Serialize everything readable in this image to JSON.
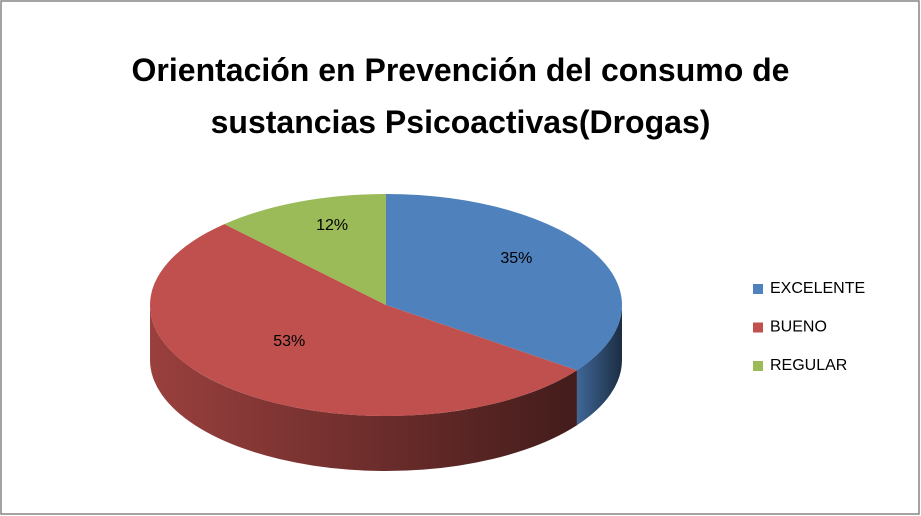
{
  "chart_data": {
    "type": "pie",
    "title": "Orientación en Prevención del consumo de sustancias Psicoactivas(Drogas)",
    "categories": [
      "EXCELENTE",
      "BUENO",
      "REGULAR"
    ],
    "values": [
      35,
      53,
      12
    ],
    "value_labels": [
      "35%",
      "53%",
      "12%"
    ],
    "colors": [
      "#4f81bd",
      "#c0504d",
      "#9bbb59"
    ],
    "legend": "right"
  }
}
